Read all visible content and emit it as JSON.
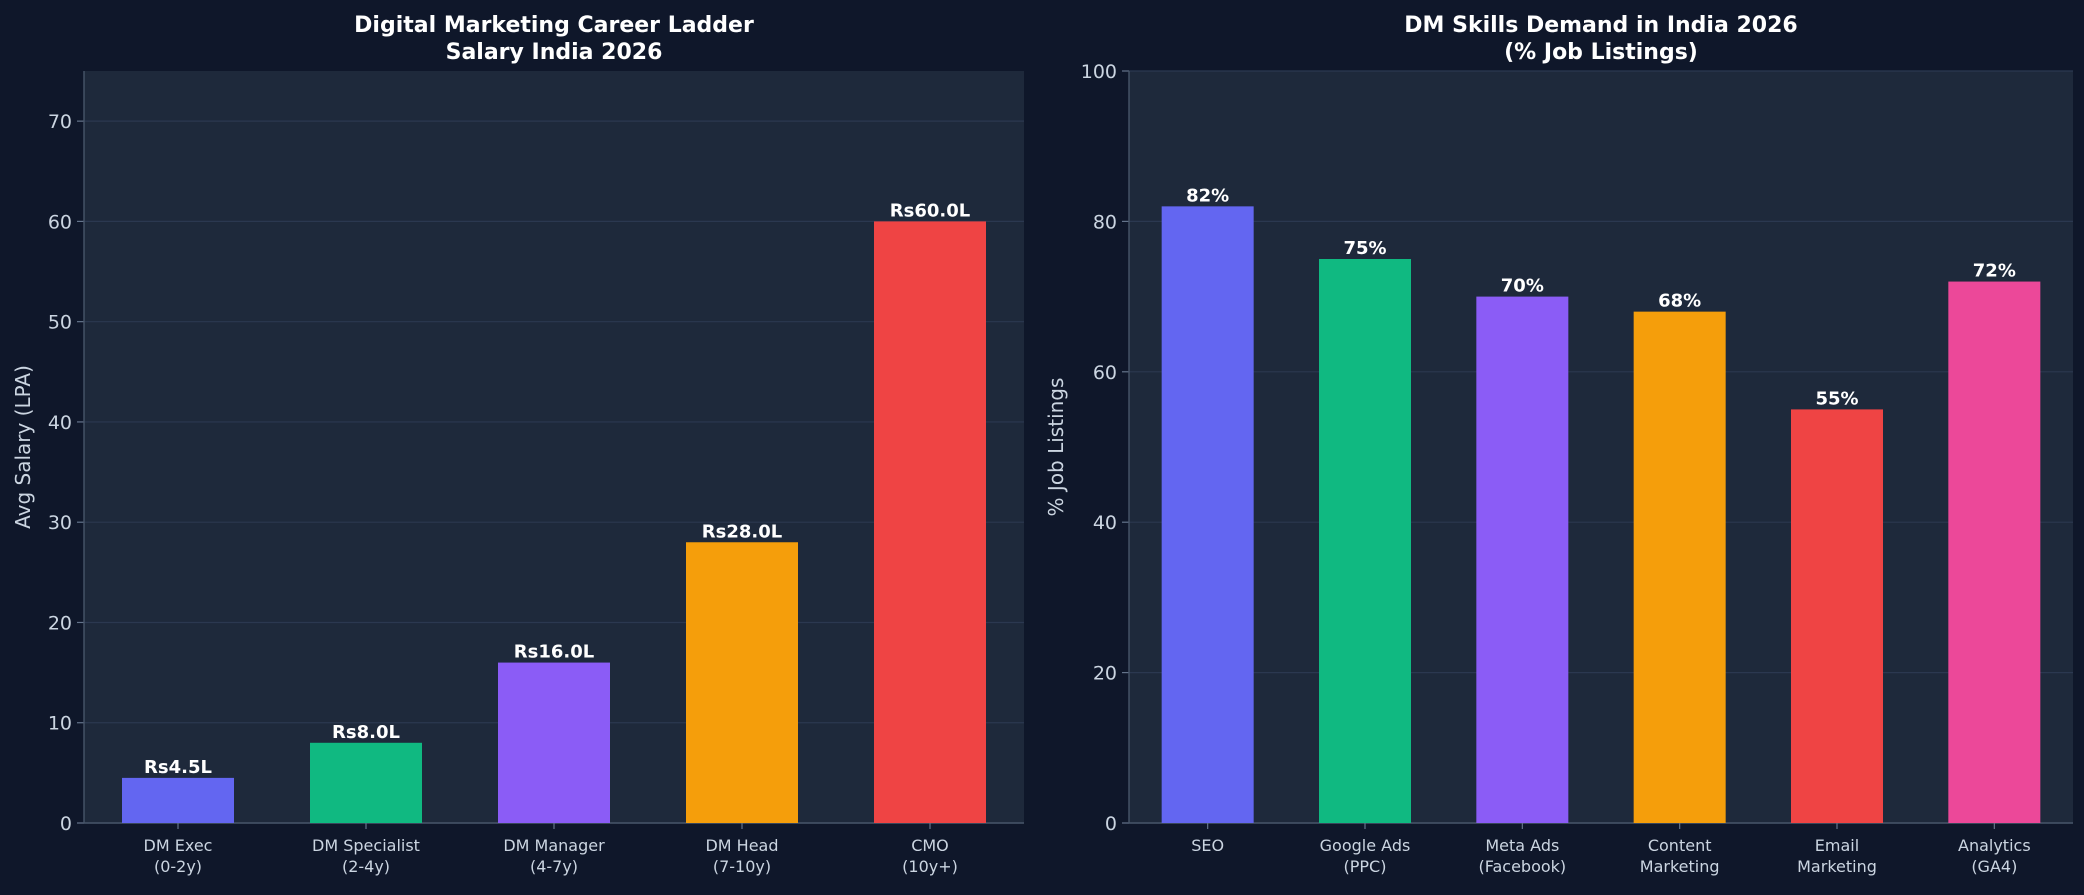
{
  "chart_data": [
    {
      "type": "bar",
      "title_lines": [
        "Digital Marketing Career Ladder",
        "Salary India 2026"
      ],
      "xlabel": "",
      "ylabel": "Avg Salary (LPA)",
      "ylim": [
        0,
        75
      ],
      "yticks": [
        0,
        10,
        20,
        30,
        40,
        50,
        60,
        70
      ],
      "grid": true,
      "categories": [
        [
          "DM Exec",
          "(0-2y)"
        ],
        [
          "DM Specialist",
          "(2-4y)"
        ],
        [
          "DM Manager",
          "(4-7y)"
        ],
        [
          "DM Head",
          "(7-10y)"
        ],
        [
          "CMO",
          "(10y+)"
        ]
      ],
      "values": [
        4.5,
        8.0,
        16.0,
        28.0,
        60.0
      ],
      "data_labels": [
        "Rs4.5L",
        "Rs8.0L",
        "Rs16.0L",
        "Rs28.0L",
        "Rs60.0L"
      ],
      "colors": [
        "#6366f1",
        "#10b981",
        "#8b5cf6",
        "#f59e0b",
        "#ef4444"
      ]
    },
    {
      "type": "bar",
      "title_lines": [
        "DM Skills Demand in India 2026",
        "(% Job Listings)"
      ],
      "xlabel": "",
      "ylabel": "% Job Listings",
      "ylim": [
        0,
        100
      ],
      "yticks": [
        0,
        20,
        40,
        60,
        80,
        100
      ],
      "grid": true,
      "categories": [
        [
          "SEO"
        ],
        [
          "Google Ads",
          "(PPC)"
        ],
        [
          "Meta Ads",
          "(Facebook)"
        ],
        [
          "Content",
          "Marketing"
        ],
        [
          "Email",
          "Marketing"
        ],
        [
          "Analytics",
          "(GA4)"
        ]
      ],
      "values": [
        82,
        75,
        70,
        68,
        55,
        72
      ],
      "data_labels": [
        "82%",
        "75%",
        "70%",
        "68%",
        "55%",
        "72%"
      ],
      "colors": [
        "#6366f1",
        "#10b981",
        "#8b5cf6",
        "#f59e0b",
        "#ef4444",
        "#ec4899"
      ]
    }
  ]
}
